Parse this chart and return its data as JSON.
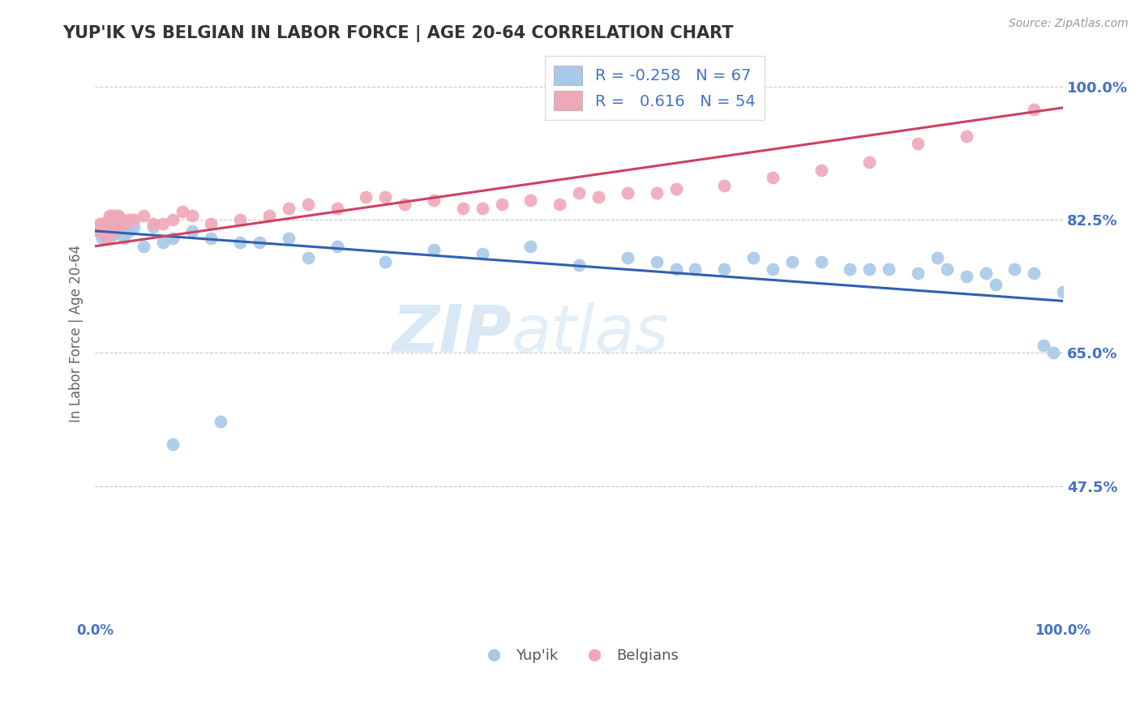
{
  "title": "YUP'IK VS BELGIAN IN LABOR FORCE | AGE 20-64 CORRELATION CHART",
  "source": "Source: ZipAtlas.com",
  "ylabel": "In Labor Force | Age 20-64",
  "xlim": [
    0.0,
    1.0
  ],
  "ylim": [
    0.3,
    1.05
  ],
  "yticks": [
    0.475,
    0.65,
    0.825,
    1.0
  ],
  "ytick_labels": [
    "47.5%",
    "65.0%",
    "82.5%",
    "100.0%"
  ],
  "xtick_labels": [
    "0.0%",
    "100.0%"
  ],
  "xticks": [
    0.0,
    1.0
  ],
  "legend_r_blue": "-0.258",
  "legend_n_blue": "67",
  "legend_r_pink": "0.616",
  "legend_n_pink": "54",
  "blue_color": "#a8c8e8",
  "pink_color": "#f0a8b8",
  "blue_line_color": "#3060b0",
  "pink_line_color": "#d04060",
  "watermark_zip": "ZIP",
  "watermark_atlas": "atlas",
  "blue_scatter_x": [
    0.003,
    0.005,
    0.006,
    0.007,
    0.008,
    0.009,
    0.01,
    0.011,
    0.012,
    0.013,
    0.014,
    0.015,
    0.016,
    0.017,
    0.018,
    0.019,
    0.02,
    0.021,
    0.022,
    0.023,
    0.025,
    0.028,
    0.03,
    0.032,
    0.035,
    0.04,
    0.05,
    0.06,
    0.07,
    0.08,
    0.1,
    0.12,
    0.15,
    0.17,
    0.2,
    0.22,
    0.25,
    0.3,
    0.35,
    0.4,
    0.45,
    0.5,
    0.55,
    0.58,
    0.6,
    0.62,
    0.65,
    0.68,
    0.7,
    0.72,
    0.75,
    0.78,
    0.8,
    0.82,
    0.85,
    0.87,
    0.88,
    0.9,
    0.92,
    0.93,
    0.95,
    0.97,
    0.98,
    0.99,
    1.0,
    0.13,
    0.08
  ],
  "blue_scatter_y": [
    0.81,
    0.81,
    0.815,
    0.8,
    0.82,
    0.815,
    0.81,
    0.805,
    0.8,
    0.815,
    0.82,
    0.815,
    0.81,
    0.82,
    0.805,
    0.81,
    0.81,
    0.815,
    0.82,
    0.81,
    0.82,
    0.815,
    0.8,
    0.815,
    0.81,
    0.815,
    0.79,
    0.815,
    0.795,
    0.8,
    0.81,
    0.8,
    0.795,
    0.795,
    0.8,
    0.775,
    0.79,
    0.77,
    0.785,
    0.78,
    0.79,
    0.765,
    0.775,
    0.77,
    0.76,
    0.76,
    0.76,
    0.775,
    0.76,
    0.77,
    0.77,
    0.76,
    0.76,
    0.76,
    0.755,
    0.775,
    0.76,
    0.75,
    0.755,
    0.74,
    0.76,
    0.755,
    0.66,
    0.65,
    0.73,
    0.56,
    0.53
  ],
  "pink_scatter_x": [
    0.003,
    0.005,
    0.007,
    0.008,
    0.009,
    0.01,
    0.012,
    0.013,
    0.015,
    0.016,
    0.017,
    0.018,
    0.019,
    0.02,
    0.022,
    0.024,
    0.026,
    0.028,
    0.03,
    0.035,
    0.04,
    0.05,
    0.06,
    0.07,
    0.08,
    0.09,
    0.1,
    0.12,
    0.15,
    0.18,
    0.2,
    0.22,
    0.25,
    0.28,
    0.3,
    0.32,
    0.35,
    0.38,
    0.4,
    0.42,
    0.45,
    0.48,
    0.5,
    0.52,
    0.55,
    0.58,
    0.6,
    0.65,
    0.7,
    0.75,
    0.8,
    0.85,
    0.9,
    0.97
  ],
  "pink_scatter_y": [
    0.81,
    0.82,
    0.82,
    0.81,
    0.82,
    0.815,
    0.8,
    0.82,
    0.83,
    0.815,
    0.825,
    0.83,
    0.82,
    0.81,
    0.83,
    0.83,
    0.82,
    0.825,
    0.82,
    0.825,
    0.825,
    0.83,
    0.82,
    0.82,
    0.825,
    0.835,
    0.83,
    0.82,
    0.825,
    0.83,
    0.84,
    0.845,
    0.84,
    0.855,
    0.855,
    0.845,
    0.85,
    0.84,
    0.84,
    0.845,
    0.85,
    0.845,
    0.86,
    0.855,
    0.86,
    0.86,
    0.865,
    0.87,
    0.88,
    0.89,
    0.9,
    0.925,
    0.935,
    0.97
  ],
  "blue_trend_x0": 0.0,
  "blue_trend_y0": 0.81,
  "blue_trend_x1": 1.0,
  "blue_trend_y1": 0.718,
  "pink_trend_x0": 0.0,
  "pink_trend_y0": 0.79,
  "pink_trend_x1": 1.0,
  "pink_trend_y1": 0.972
}
